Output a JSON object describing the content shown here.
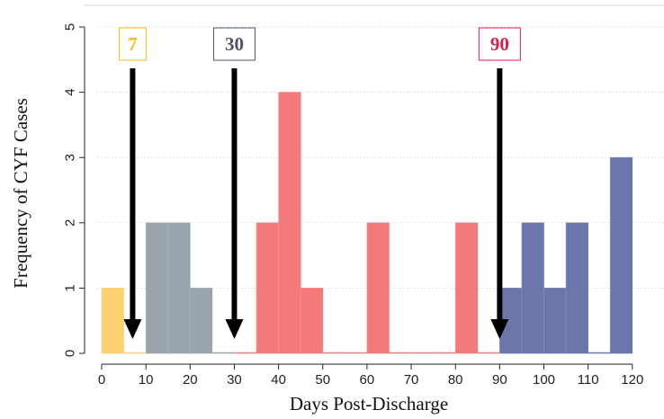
{
  "chart_data": {
    "type": "bar",
    "title": "",
    "xlabel": "Days Post-Discharge",
    "ylabel": "Frequency of CYF Cases",
    "xlim": [
      -2,
      122
    ],
    "ylim": [
      0,
      5
    ],
    "x_ticks": [
      0,
      10,
      20,
      30,
      40,
      50,
      60,
      70,
      80,
      90,
      100,
      110,
      120
    ],
    "y_ticks": [
      0,
      1,
      2,
      3,
      4,
      5
    ],
    "grid": true,
    "bin_width": 5,
    "colors": {
      "early": "#FDD072",
      "mid": "#9AA5AE",
      "late": "#F47A7A",
      "post": "#6B77AB"
    },
    "bins": [
      {
        "start": 0,
        "end": 5,
        "count": 1,
        "group": "early"
      },
      {
        "start": 5,
        "end": 10,
        "count": 0,
        "group": "early"
      },
      {
        "start": 10,
        "end": 15,
        "count": 2,
        "group": "mid"
      },
      {
        "start": 15,
        "end": 20,
        "count": 2,
        "group": "mid"
      },
      {
        "start": 20,
        "end": 25,
        "count": 1,
        "group": "mid"
      },
      {
        "start": 25,
        "end": 30,
        "count": 0,
        "group": "mid"
      },
      {
        "start": 30,
        "end": 35,
        "count": 0,
        "group": "late"
      },
      {
        "start": 35,
        "end": 40,
        "count": 2,
        "group": "late"
      },
      {
        "start": 40,
        "end": 45,
        "count": 4,
        "group": "late"
      },
      {
        "start": 45,
        "end": 50,
        "count": 1,
        "group": "late"
      },
      {
        "start": 50,
        "end": 55,
        "count": 0,
        "group": "late"
      },
      {
        "start": 55,
        "end": 60,
        "count": 0,
        "group": "late"
      },
      {
        "start": 60,
        "end": 65,
        "count": 2,
        "group": "late"
      },
      {
        "start": 65,
        "end": 70,
        "count": 0,
        "group": "late"
      },
      {
        "start": 70,
        "end": 75,
        "count": 0,
        "group": "late"
      },
      {
        "start": 75,
        "end": 80,
        "count": 0,
        "group": "late"
      },
      {
        "start": 80,
        "end": 85,
        "count": 2,
        "group": "late"
      },
      {
        "start": 85,
        "end": 90,
        "count": 0,
        "group": "late"
      },
      {
        "start": 90,
        "end": 95,
        "count": 1,
        "group": "post"
      },
      {
        "start": 95,
        "end": 100,
        "count": 2,
        "group": "post"
      },
      {
        "start": 100,
        "end": 105,
        "count": 1,
        "group": "post"
      },
      {
        "start": 105,
        "end": 110,
        "count": 2,
        "group": "post"
      },
      {
        "start": 110,
        "end": 115,
        "count": 0,
        "group": "post"
      },
      {
        "start": 115,
        "end": 120,
        "count": 3,
        "group": "post"
      }
    ],
    "annotations": [
      {
        "label": "7",
        "x": 7,
        "color": "#F5BE1C"
      },
      {
        "label": "30",
        "x": 30,
        "color": "#4A5464"
      },
      {
        "label": "90",
        "x": 90,
        "color": "#D81E4D"
      }
    ]
  }
}
